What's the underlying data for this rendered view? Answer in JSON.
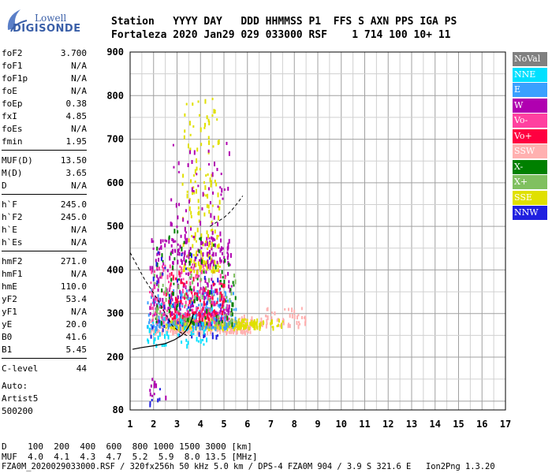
{
  "logo": {
    "line1": "Lowell",
    "line2": "DIGISONDE"
  },
  "header": {
    "line1": "Station   YYYY DAY   DDD HHMMSS P1  FFS S AXN PPS IGA PS",
    "line2": "Fortaleza 2020 Jan29 029 033000 RSF    1 714 100 10+ 11"
  },
  "params": [
    {
      "name": "foF2",
      "value": "3.700"
    },
    {
      "name": "foF1",
      "value": "N/A"
    },
    {
      "name": "foF1p",
      "value": "N/A"
    },
    {
      "name": "foE",
      "value": "N/A"
    },
    {
      "name": "foEp",
      "value": "0.38"
    },
    {
      "name": "fxI",
      "value": "4.85"
    },
    {
      "name": "foEs",
      "value": "N/A"
    },
    {
      "name": "fmin",
      "value": "1.95"
    },
    {
      "name": "MUF(D)",
      "value": "13.50"
    },
    {
      "name": "M(D)",
      "value": "3.65"
    },
    {
      "name": "D",
      "value": "N/A"
    },
    {
      "name": "h`F",
      "value": "245.0"
    },
    {
      "name": "h`F2",
      "value": "245.0"
    },
    {
      "name": "h`E",
      "value": "N/A"
    },
    {
      "name": "h`Es",
      "value": "N/A"
    },
    {
      "name": "hmF2",
      "value": "271.0"
    },
    {
      "name": "hmF1",
      "value": "N/A"
    },
    {
      "name": "hmE",
      "value": "110.0"
    },
    {
      "name": "yF2",
      "value": "53.4"
    },
    {
      "name": "yF1",
      "value": "N/A"
    },
    {
      "name": "yE",
      "value": "20.0"
    },
    {
      "name": "B0",
      "value": "41.6"
    },
    {
      "name": "B1",
      "value": "5.45"
    },
    {
      "name": "C-level",
      "value": "44"
    }
  ],
  "notes": {
    "line1": "Auto:",
    "line2": "Artist5",
    "line3": "500200"
  },
  "legend": [
    {
      "label": "NoVal",
      "color": "#808080"
    },
    {
      "label": "NNE",
      "color": "#00e0ff"
    },
    {
      "label": "E",
      "color": "#3aa0ff"
    },
    {
      "label": "W",
      "color": "#b000b0"
    },
    {
      "label": "Vo-",
      "color": "#ff40a0"
    },
    {
      "label": "Vo+",
      "color": "#ff0040"
    },
    {
      "label": "SSW",
      "color": "#ffb0b0"
    },
    {
      "label": "X-",
      "color": "#008000"
    },
    {
      "label": "X+",
      "color": "#80c060"
    },
    {
      "label": "SSE",
      "color": "#e0e000"
    },
    {
      "label": "NNW",
      "color": "#2020e0"
    }
  ],
  "footer": {
    "d_label": "D",
    "d_values": "100  200  400  600  800 1000 1500 3000 [km]",
    "muf_label": "MUF",
    "muf_values": "4.0  4.1  4.3  4.7  5.2  5.9  8.0 13.5 [MHz]",
    "file_line": "FZA0M_2020029033000.RSF / 320fx256h 50 kHz 5.0 km / DPS-4 FZA0M 904 / 3.9 S 321.6 E   Ion2Png 1.3.20"
  },
  "chart_data": {
    "type": "scatter",
    "title": "",
    "xlabel": "",
    "ylabel": "",
    "xlim": [
      1,
      17
    ],
    "ylim": [
      80,
      900
    ],
    "x_ticks": [
      1,
      2,
      3,
      4,
      5,
      6,
      7,
      8,
      9,
      10,
      11,
      12,
      13,
      14,
      15,
      16,
      17
    ],
    "y_ticks": [
      80,
      200,
      300,
      400,
      500,
      600,
      700,
      800,
      900
    ],
    "grid": true,
    "clusters": [
      {
        "name": "F-trace low",
        "color": "#ffb0b0",
        "x_range": [
          1.8,
          6.2
        ],
        "h_range": [
          260,
          300
        ],
        "n": 260
      },
      {
        "name": "F-trace low",
        "color": "#e0e000",
        "x_range": [
          2.5,
          6.5
        ],
        "h_range": [
          270,
          290
        ],
        "n": 220
      },
      {
        "name": "F-trace mid",
        "color": "#3aa0ff",
        "x_range": [
          1.7,
          5.5
        ],
        "h_range": [
          270,
          360
        ],
        "n": 200
      },
      {
        "name": "F-trace mid",
        "color": "#b000b0",
        "x_range": [
          1.8,
          5.3
        ],
        "h_range": [
          300,
          480
        ],
        "n": 240
      },
      {
        "name": "F-trace mid",
        "color": "#ff40a0",
        "x_range": [
          1.8,
          5.2
        ],
        "h_range": [
          280,
          420
        ],
        "n": 180
      },
      {
        "name": "F-trace mid",
        "color": "#ff0040",
        "x_range": [
          2.5,
          5.0
        ],
        "h_range": [
          290,
          400
        ],
        "n": 100
      },
      {
        "name": "spread high",
        "color": "#e0e000",
        "x_range": [
          3.2,
          4.8
        ],
        "h_range": [
          400,
          800
        ],
        "n": 160
      },
      {
        "name": "spread high",
        "color": "#b000b0",
        "x_range": [
          2.7,
          5.2
        ],
        "h_range": [
          420,
          700
        ],
        "n": 90
      },
      {
        "name": "spread green",
        "color": "#008000",
        "x_range": [
          2.0,
          5.5
        ],
        "h_range": [
          280,
          500
        ],
        "n": 80
      },
      {
        "name": "spread green",
        "color": "#80c060",
        "x_range": [
          2.0,
          5.5
        ],
        "h_range": [
          280,
          400
        ],
        "n": 70
      },
      {
        "name": "blue",
        "color": "#2020e0",
        "x_range": [
          1.8,
          5.0
        ],
        "h_range": [
          250,
          450
        ],
        "n": 50
      },
      {
        "name": "cyan",
        "color": "#00e0ff",
        "x_range": [
          1.7,
          4.5
        ],
        "h_range": [
          230,
          330
        ],
        "n": 50
      },
      {
        "name": "tail",
        "color": "#ffb0b0",
        "x_range": [
          6.5,
          8.5
        ],
        "h_range": [
          275,
          320
        ],
        "n": 45
      },
      {
        "name": "tail",
        "color": "#e0e000",
        "x_range": [
          6.2,
          7.5
        ],
        "h_range": [
          270,
          290
        ],
        "n": 20
      },
      {
        "name": "low",
        "color": "#b000b0",
        "x_range": [
          1.8,
          2.5
        ],
        "h_range": [
          110,
          190
        ],
        "n": 10
      },
      {
        "name": "low",
        "color": "#2020e0",
        "x_range": [
          1.8,
          2.3
        ],
        "h_range": [
          95,
          140
        ],
        "n": 6
      }
    ],
    "profile_curve": [
      [
        1.1,
        218
      ],
      [
        1.5,
        222
      ],
      [
        2.0,
        226
      ],
      [
        2.5,
        231
      ],
      [
        2.9,
        240
      ],
      [
        3.2,
        250
      ],
      [
        3.4,
        262
      ],
      [
        3.55,
        275
      ],
      [
        3.65,
        290
      ],
      [
        3.7,
        300
      ]
    ],
    "dashed_curve": [
      [
        1.0,
        440
      ],
      [
        1.3,
        410
      ],
      [
        1.6,
        380
      ],
      [
        1.9,
        355
      ],
      [
        2.2,
        330
      ],
      [
        2.5,
        300
      ],
      [
        2.8,
        272
      ],
      [
        3.1,
        258
      ],
      [
        3.4,
        250
      ],
      [
        3.6,
        250
      ]
    ],
    "dashed_curve_2": [
      [
        4.4,
        500
      ],
      [
        4.7,
        510
      ],
      [
        5.0,
        520
      ],
      [
        5.3,
        535
      ],
      [
        5.6,
        555
      ],
      [
        5.8,
        570
      ]
    ]
  }
}
